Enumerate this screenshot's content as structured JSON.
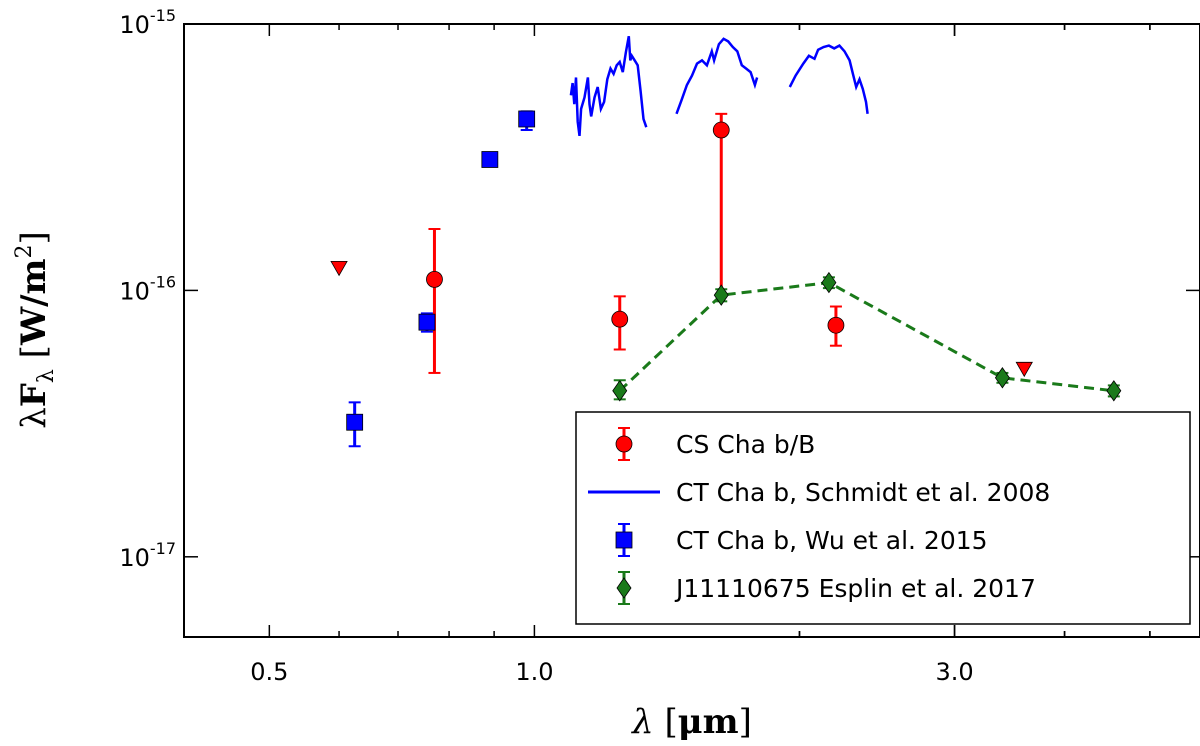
{
  "chart_data": {
    "type": "scatter",
    "xscale": "log",
    "yscale": "log",
    "xlim": [
      0.4,
      5.7
    ],
    "ylim": [
      5e-18,
      1e-15
    ],
    "xlabel": {
      "lambda": "λ",
      "unit": "μm"
    },
    "ylabel": {
      "lambda": "λ",
      "F": "F",
      "sub": "λ",
      "unit": "W/m",
      "power": "2"
    },
    "xticks": [
      {
        "value": 0.5,
        "label": "0.5"
      },
      {
        "value": 1.0,
        "label": "1.0"
      },
      {
        "value": 3.0,
        "label": "3.0"
      }
    ],
    "yticks": [
      {
        "value": 1e-17,
        "base": "10",
        "exp": "-17"
      },
      {
        "value": 1e-16,
        "base": "10",
        "exp": "-16"
      },
      {
        "value": 1e-15,
        "base": "10",
        "exp": "-15"
      }
    ],
    "series": [
      {
        "name": "CS Cha b/B",
        "kind": "errorbar",
        "marker": "circle",
        "color": "#ff0000",
        "points": [
          {
            "x": 0.77,
            "y": 1.1e-16,
            "ylo": 4.9e-17,
            "yhi": 1.7e-16
          },
          {
            "x": 1.25,
            "y": 7.8e-17,
            "ylo": 6e-17,
            "yhi": 9.5e-17
          },
          {
            "x": 1.63,
            "y": 4e-16,
            "ylo": 9.6e-17,
            "yhi": 4.6e-16
          },
          {
            "x": 2.2,
            "y": 7.4e-17,
            "ylo": 6.2e-17,
            "yhi": 8.7e-17
          }
        ],
        "upper_limits": [
          {
            "x": 0.6,
            "y": 1.22e-16
          },
          {
            "x": 3.6,
            "y": 5.1e-17
          }
        ]
      },
      {
        "name": "CT Cha b, Schmidt et al. 2008",
        "kind": "line",
        "color": "#0000ff",
        "segments": [
          [
            [
              1.1,
              5.4e-16
            ],
            [
              1.105,
              6e-16
            ],
            [
              1.11,
              5e-16
            ],
            [
              1.115,
              6.3e-16
            ],
            [
              1.12,
              4.3e-16
            ],
            [
              1.125,
              3.8e-16
            ],
            [
              1.13,
              4.8e-16
            ],
            [
              1.14,
              5.3e-16
            ],
            [
              1.15,
              6.3e-16
            ],
            [
              1.155,
              5e-16
            ],
            [
              1.16,
              4.5e-16
            ],
            [
              1.17,
              5.3e-16
            ],
            [
              1.18,
              5.8e-16
            ],
            [
              1.19,
              4.8e-16
            ],
            [
              1.2,
              5.1e-16
            ],
            [
              1.21,
              6.2e-16
            ],
            [
              1.22,
              6.8e-16
            ],
            [
              1.23,
              6.5e-16
            ],
            [
              1.24,
              7e-16
            ],
            [
              1.25,
              7.2e-16
            ],
            [
              1.26,
              6.6e-16
            ],
            [
              1.27,
              7.8e-16
            ],
            [
              1.28,
              9e-16
            ],
            [
              1.285,
              7.3e-16
            ],
            [
              1.29,
              7.6e-16
            ],
            [
              1.3,
              7.3e-16
            ],
            [
              1.31,
              7e-16
            ],
            [
              1.32,
              5.6e-16
            ],
            [
              1.33,
              4.4e-16
            ],
            [
              1.34,
              4.1e-16
            ]
          ],
          [
            [
              1.45,
              4.6e-16
            ],
            [
              1.47,
              5.2e-16
            ],
            [
              1.49,
              5.9e-16
            ],
            [
              1.51,
              6.4e-16
            ],
            [
              1.53,
              7.1e-16
            ],
            [
              1.55,
              7.3e-16
            ],
            [
              1.57,
              7e-16
            ],
            [
              1.59,
              7.9e-16
            ],
            [
              1.6,
              7.3e-16
            ],
            [
              1.62,
              8.4e-16
            ],
            [
              1.64,
              8.8e-16
            ],
            [
              1.66,
              8.6e-16
            ],
            [
              1.68,
              8.2e-16
            ],
            [
              1.7,
              7.9e-16
            ],
            [
              1.72,
              7e-16
            ],
            [
              1.74,
              6.8e-16
            ],
            [
              1.76,
              6.6e-16
            ],
            [
              1.78,
              5.9e-16
            ],
            [
              1.79,
              6.3e-16
            ]
          ],
          [
            [
              1.95,
              5.8e-16
            ],
            [
              1.98,
              6.4e-16
            ],
            [
              2.02,
              7.1e-16
            ],
            [
              2.05,
              7.6e-16
            ],
            [
              2.08,
              7.4e-16
            ],
            [
              2.1,
              8e-16
            ],
            [
              2.13,
              8.2e-16
            ],
            [
              2.16,
              8.3e-16
            ],
            [
              2.19,
              8.1e-16
            ],
            [
              2.22,
              8.3e-16
            ],
            [
              2.25,
              7.9e-16
            ],
            [
              2.28,
              7.3e-16
            ],
            [
              2.3,
              6.5e-16
            ],
            [
              2.32,
              5.8e-16
            ],
            [
              2.34,
              6.2e-16
            ],
            [
              2.36,
              5.7e-16
            ],
            [
              2.38,
              5.1e-16
            ],
            [
              2.39,
              4.6e-16
            ]
          ]
        ]
      },
      {
        "name": "CT Cha b, Wu et al. 2015",
        "kind": "errorbar",
        "marker": "square",
        "color": "#0000ff",
        "points": [
          {
            "x": 0.625,
            "y": 3.2e-17,
            "ylo": 2.6e-17,
            "yhi": 3.8e-17
          },
          {
            "x": 0.755,
            "y": 7.6e-17,
            "ylo": 7e-17,
            "yhi": 8.2e-17
          },
          {
            "x": 0.89,
            "y": 3.1e-16,
            "ylo": 3e-16,
            "yhi": 3.2e-16
          },
          {
            "x": 0.98,
            "y": 4.4e-16,
            "ylo": 4e-16,
            "yhi": 4.7e-16
          }
        ]
      },
      {
        "name": "J11110675 Esplin et al. 2017",
        "kind": "errorbar",
        "marker": "diamond",
        "color": "#1a7a1a",
        "line": "dashed",
        "points": [
          {
            "x": 1.25,
            "y": 4.2e-17,
            "ylo": 3.9e-17,
            "yhi": 4.6e-17
          },
          {
            "x": 1.63,
            "y": 9.6e-17,
            "ylo": 9.1e-17,
            "yhi": 1.01e-16
          },
          {
            "x": 2.16,
            "y": 1.07e-16,
            "ylo": 1.02e-16,
            "yhi": 1.12e-16
          },
          {
            "x": 3.4,
            "y": 4.7e-17,
            "ylo": 4.5e-17,
            "yhi": 4.9e-17
          },
          {
            "x": 4.55,
            "y": 4.2e-17,
            "ylo": 4e-17,
            "yhi": 4.4e-17
          }
        ]
      }
    ],
    "legend": {
      "position": "lower-right",
      "entries": [
        "CS Cha b/B",
        "CT Cha b, Schmidt et al. 2008",
        "CT Cha b, Wu et al. 2015",
        "J11110675 Esplin et al. 2017"
      ]
    }
  }
}
